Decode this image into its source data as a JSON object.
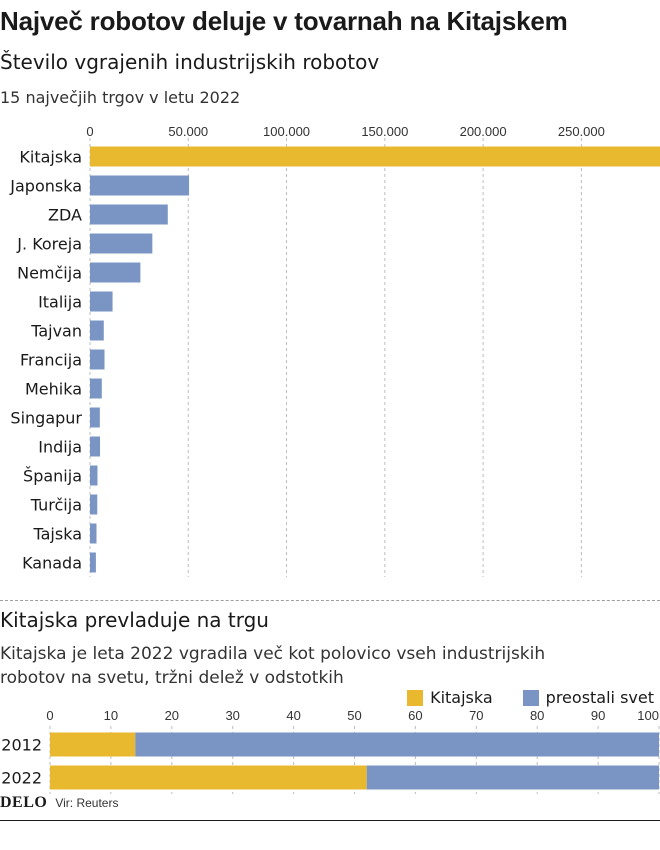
{
  "colors": {
    "china": "#e8b82f",
    "other": "#7a95c4",
    "grid": "#bdbdbd"
  },
  "header": {
    "title": "Največ robotov deluje v tovarnah na Kitajskem"
  },
  "chart_data": [
    {
      "type": "bar",
      "orientation": "horizontal",
      "title": "Število vgrajenih industrijskih robotov",
      "subtitle": "15 največjih trgov v letu 2022",
      "categories": [
        "Kitajska",
        "Japonska",
        "ZDA",
        "J. Koreja",
        "Nemčija",
        "Italija",
        "Tajvan",
        "Francija",
        "Mehika",
        "Singapur",
        "Indija",
        "Španija",
        "Turčija",
        "Tajska",
        "Kanada"
      ],
      "values": [
        290258,
        50413,
        39576,
        31716,
        25636,
        11475,
        7012,
        7380,
        6000,
        5012,
        5110,
        3806,
        3700,
        3300,
        3000
      ],
      "xlim": [
        0,
        290000
      ],
      "xticks": [
        0,
        50000,
        100000,
        150000,
        200000,
        250000
      ],
      "xtick_labels": [
        "0",
        "50.000",
        "100.000",
        "150.000",
        "200.000",
        "250.000"
      ],
      "grid": true
    },
    {
      "type": "bar",
      "orientation": "horizontal",
      "stacked": true,
      "title": "Kitajska prevladuje na trgu",
      "subtitle_lines": [
        "Kitajska je leta 2022 vgradila več kot polovico vseh industrijskih",
        "robotov na svetu, tržni delež v odstotkih"
      ],
      "categories": [
        "2012",
        "2022"
      ],
      "series": [
        {
          "name": "Kitajska",
          "values": [
            14,
            52
          ]
        },
        {
          "name": "preostali svet",
          "values": [
            86,
            48
          ]
        }
      ],
      "xlim": [
        0,
        100
      ],
      "xticks": [
        0,
        10,
        20,
        30,
        40,
        50,
        60,
        70,
        80,
        90,
        100
      ],
      "legend_position": "top-right",
      "grid": true
    }
  ],
  "footer": {
    "brand": "DELO",
    "source": "Vir: Reuters"
  }
}
